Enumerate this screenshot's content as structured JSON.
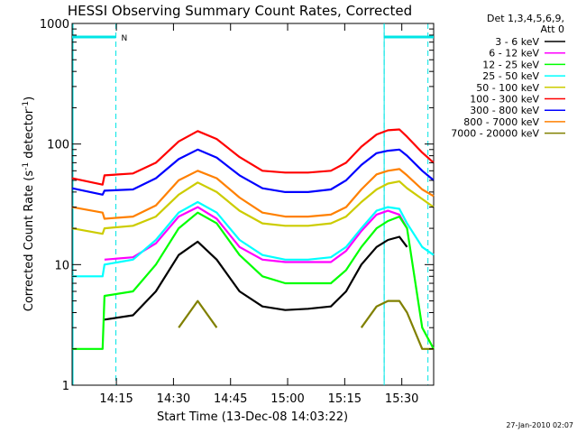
{
  "chart_data": {
    "type": "line",
    "title": "HESSI Observing Summary Count Rates, Corrected",
    "xlabel": "Start Time (13-Dec-08 14:03:22)",
    "ylabel_main": "Corrected Count Rate (s",
    "ylabel_sup1": "-1",
    "ylabel_mid": " detector",
    "ylabel_sup2": "-1",
    "ylabel_end": ")",
    "y_scale": "log",
    "ylim": [
      1,
      1000
    ],
    "xlim_minutes": [
      0,
      95
    ],
    "x_ticks": [
      {
        "minute": 11.63,
        "label": "14:15"
      },
      {
        "minute": 26.63,
        "label": "14:30"
      },
      {
        "minute": 41.63,
        "label": "14:45"
      },
      {
        "minute": 56.63,
        "label": "15:00"
      },
      {
        "minute": 71.63,
        "label": "15:15"
      },
      {
        "minute": 86.63,
        "label": "15:30"
      }
    ],
    "y_ticks": [
      {
        "value": 1,
        "label": "1"
      },
      {
        "value": 10,
        "label": "10"
      },
      {
        "value": 100,
        "label": "100"
      },
      {
        "value": 1000,
        "label": "1000"
      }
    ],
    "legend_header": [
      "Det 1,3,4,5,6,9,",
      "Att 0"
    ],
    "legend_placement": "right",
    "night_marker_label": "N",
    "night_intervals_minutes": [
      [
        0,
        11.5
      ],
      [
        82,
        95
      ]
    ],
    "night_boundaries_minutes": [
      11.5,
      82,
      93.5
    ],
    "x": [
      0,
      8,
      8.5,
      16,
      22,
      28,
      33,
      38,
      44,
      50,
      56,
      62,
      68,
      72,
      76,
      80,
      83,
      86,
      88,
      92,
      95
    ],
    "series": [
      {
        "name": "3 - 6 keV",
        "color": "#000000",
        "values": [
          null,
          null,
          3.5,
          3.8,
          6,
          12,
          15.5,
          11,
          6,
          4.5,
          4.2,
          4.3,
          4.5,
          6,
          10,
          14,
          16,
          17,
          14,
          null,
          null
        ]
      },
      {
        "name": "6 - 12 keV",
        "color": "#ff00ff",
        "values": [
          null,
          null,
          11,
          11.5,
          15,
          25,
          30,
          24,
          14,
          11,
          10.5,
          10.5,
          10.5,
          13,
          19,
          26,
          28,
          26,
          20,
          null,
          null
        ]
      },
      {
        "name": "12 - 25 keV",
        "color": "#00ff00",
        "values": [
          2,
          2,
          5.5,
          6,
          10,
          20,
          27,
          22,
          12,
          8,
          7,
          7,
          7,
          9,
          14,
          20,
          23,
          25,
          20,
          3,
          2
        ]
      },
      {
        "name": "25 - 50 keV",
        "color": "#00ffff",
        "values": [
          8,
          8,
          10,
          11,
          16,
          27,
          33,
          27,
          16,
          12,
          11,
          11,
          11.5,
          14,
          20,
          28,
          30,
          29,
          22,
          14,
          12
        ]
      },
      {
        "name": "50 - 100 keV",
        "color": "#cccc00",
        "values": [
          20,
          18,
          20,
          21,
          25,
          38,
          48,
          40,
          28,
          22,
          21,
          21,
          22,
          25,
          33,
          42,
          47,
          49,
          43,
          35,
          30
        ]
      },
      {
        "name": "100 - 300 keV",
        "color": "#ff0000",
        "values": [
          52,
          46,
          55,
          57,
          70,
          105,
          128,
          110,
          78,
          60,
          58,
          58,
          60,
          70,
          95,
          120,
          130,
          132,
          115,
          85,
          70
        ]
      },
      {
        "name": "300 - 800 keV",
        "color": "#0000ff",
        "values": [
          43,
          38,
          41,
          42,
          52,
          75,
          90,
          77,
          55,
          43,
          40,
          40,
          42,
          50,
          67,
          84,
          88,
          90,
          80,
          60,
          50
        ]
      },
      {
        "name": "800 - 7000 keV",
        "color": "#ff8000",
        "values": [
          30,
          27,
          24,
          25,
          31,
          50,
          60,
          52,
          36,
          27,
          25,
          25,
          26,
          30,
          42,
          56,
          60,
          62,
          55,
          42,
          37
        ]
      },
      {
        "name": "7000 - 20000 keV",
        "color": "#808000",
        "values": [
          null,
          null,
          null,
          null,
          null,
          3,
          5,
          3,
          null,
          null,
          null,
          null,
          null,
          null,
          3,
          4.5,
          5,
          5,
          4,
          2,
          2
        ]
      }
    ],
    "timestamp": "27-Jan-2010 02:07"
  }
}
